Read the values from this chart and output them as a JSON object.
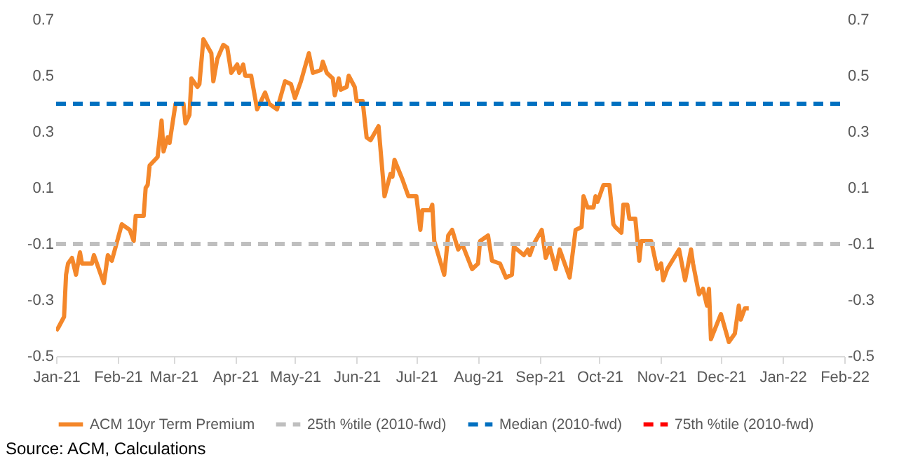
{
  "chart_data": {
    "type": "line",
    "legend": "bottom",
    "xlim": [
      "2021-01-01",
      "2022-02-01"
    ],
    "xticks": [
      {
        "value": "2021-01-01",
        "label": "Jan-21"
      },
      {
        "value": "2021-02-01",
        "label": "Feb-21"
      },
      {
        "value": "2021-03-01",
        "label": "Mar-21"
      },
      {
        "value": "2021-04-01",
        "label": "Apr-21"
      },
      {
        "value": "2021-05-01",
        "label": "May-21"
      },
      {
        "value": "2021-06-01",
        "label": "Jun-21"
      },
      {
        "value": "2021-07-01",
        "label": "Jul-21"
      },
      {
        "value": "2021-08-01",
        "label": "Aug-21"
      },
      {
        "value": "2021-09-01",
        "label": "Sep-21"
      },
      {
        "value": "2021-10-01",
        "label": "Oct-21"
      },
      {
        "value": "2021-11-01",
        "label": "Nov-21"
      },
      {
        "value": "2021-12-01",
        "label": "Dec-21"
      },
      {
        "value": "2022-01-01",
        "label": "Jan-22"
      },
      {
        "value": "2022-02-01",
        "label": "Feb-22"
      }
    ],
    "ylim": [
      -0.5,
      0.7
    ],
    "yticks": [
      -0.5,
      -0.3,
      -0.1,
      0.1,
      0.3,
      0.5,
      0.7
    ],
    "y2lim": [
      -0.5,
      0.7
    ],
    "y2ticks": [
      -0.5,
      -0.3,
      -0.1,
      0.1,
      0.3,
      0.5,
      0.7
    ],
    "annotations": [
      "Source: ACM, Calculations"
    ],
    "series": [
      {
        "name": "ACM 10yr Term Premium",
        "color": "#f4872a",
        "line_style": "solid",
        "x": [
          "2021-01-01",
          "2021-01-02",
          "2021-01-05",
          "2021-01-06",
          "2021-01-07",
          "2021-01-09",
          "2021-01-11",
          "2021-01-13",
          "2021-01-14",
          "2021-01-19",
          "2021-01-20",
          "2021-01-25",
          "2021-01-27",
          "2021-01-29",
          "2021-02-03",
          "2021-02-07",
          "2021-02-09",
          "2021-02-10",
          "2021-02-14",
          "2021-02-15",
          "2021-02-16",
          "2021-02-17",
          "2021-02-21",
          "2021-02-23",
          "2021-02-24",
          "2021-02-26",
          "2021-02-27",
          "2021-03-02",
          "2021-03-06",
          "2021-03-07",
          "2021-03-09",
          "2021-03-10",
          "2021-03-13",
          "2021-03-14",
          "2021-03-16",
          "2021-03-20",
          "2021-03-21",
          "2021-03-23",
          "2021-03-26",
          "2021-03-28",
          "2021-03-30",
          "2021-04-02",
          "2021-04-03",
          "2021-04-05",
          "2021-04-06",
          "2021-04-09",
          "2021-04-12",
          "2021-04-16",
          "2021-04-18",
          "2021-04-22",
          "2021-04-26",
          "2021-04-29",
          "2021-05-01",
          "2021-05-04",
          "2021-05-08",
          "2021-05-10",
          "2021-05-14",
          "2021-05-15",
          "2021-05-17",
          "2021-05-20",
          "2021-05-21",
          "2021-05-23",
          "2021-05-24",
          "2021-05-27",
          "2021-05-28",
          "2021-05-31",
          "2021-06-01",
          "2021-06-04",
          "2021-06-06",
          "2021-06-08",
          "2021-06-12",
          "2021-06-15",
          "2021-06-18",
          "2021-06-19",
          "2021-06-20",
          "2021-06-24",
          "2021-06-27",
          "2021-07-01",
          "2021-07-03",
          "2021-07-04",
          "2021-07-08",
          "2021-07-09",
          "2021-07-10",
          "2021-07-15",
          "2021-07-17",
          "2021-07-19",
          "2021-07-22",
          "2021-07-24",
          "2021-07-29",
          "2021-08-01",
          "2021-08-02",
          "2021-08-06",
          "2021-08-08",
          "2021-08-12",
          "2021-08-15",
          "2021-08-18",
          "2021-08-19",
          "2021-08-24",
          "2021-08-26",
          "2021-08-27",
          "2021-08-29",
          "2021-09-02",
          "2021-09-04",
          "2021-09-06",
          "2021-09-09",
          "2021-09-11",
          "2021-09-16",
          "2021-09-19",
          "2021-09-22",
          "2021-09-23",
          "2021-09-25",
          "2021-09-28",
          "2021-09-29",
          "2021-09-30",
          "2021-10-03",
          "2021-10-06",
          "2021-10-08",
          "2021-10-09",
          "2021-10-12",
          "2021-10-13",
          "2021-10-15",
          "2021-10-16",
          "2021-10-19",
          "2021-10-21",
          "2021-10-22",
          "2021-10-27",
          "2021-10-30",
          "2021-11-01",
          "2021-11-02",
          "2021-11-04",
          "2021-11-10",
          "2021-11-13",
          "2021-11-16",
          "2021-11-17",
          "2021-11-20",
          "2021-11-22",
          "2021-11-24",
          "2021-11-25",
          "2021-11-26",
          "2021-12-01",
          "2021-12-05",
          "2021-12-08",
          "2021-12-10",
          "2021-12-11",
          "2021-12-13",
          "2021-12-15"
        ],
        "values": [
          -0.41,
          -0.4,
          -0.36,
          -0.21,
          -0.17,
          -0.15,
          -0.21,
          -0.13,
          -0.17,
          -0.17,
          -0.14,
          -0.24,
          -0.14,
          -0.16,
          -0.03,
          -0.05,
          -0.09,
          0.0,
          0.0,
          0.1,
          0.11,
          0.18,
          0.21,
          0.34,
          0.23,
          0.28,
          0.26,
          0.4,
          0.4,
          0.33,
          0.36,
          0.49,
          0.46,
          0.47,
          0.63,
          0.58,
          0.48,
          0.56,
          0.61,
          0.6,
          0.51,
          0.54,
          0.51,
          0.54,
          0.5,
          0.5,
          0.38,
          0.44,
          0.4,
          0.38,
          0.48,
          0.47,
          0.42,
          0.48,
          0.58,
          0.51,
          0.52,
          0.55,
          0.51,
          0.49,
          0.43,
          0.49,
          0.45,
          0.46,
          0.5,
          0.46,
          0.41,
          0.41,
          0.28,
          0.27,
          0.32,
          0.07,
          0.15,
          0.14,
          0.2,
          0.13,
          0.07,
          0.07,
          -0.05,
          0.02,
          0.02,
          0.04,
          -0.09,
          -0.21,
          -0.07,
          -0.05,
          -0.12,
          -0.1,
          -0.19,
          -0.17,
          -0.09,
          -0.07,
          -0.16,
          -0.17,
          -0.22,
          -0.21,
          -0.11,
          -0.14,
          -0.12,
          -0.14,
          -0.1,
          -0.05,
          -0.15,
          -0.11,
          -0.19,
          -0.12,
          -0.22,
          -0.05,
          -0.04,
          0.07,
          0.03,
          0.03,
          0.07,
          0.05,
          0.11,
          0.11,
          -0.03,
          -0.04,
          -0.06,
          0.04,
          0.04,
          -0.01,
          -0.01,
          -0.16,
          -0.09,
          -0.09,
          -0.19,
          -0.17,
          -0.23,
          -0.19,
          -0.12,
          -0.23,
          -0.12,
          -0.17,
          -0.28,
          -0.26,
          -0.32,
          -0.26,
          -0.44,
          -0.35,
          -0.45,
          -0.42,
          -0.32,
          -0.37,
          -0.33,
          -0.33
        ]
      },
      {
        "name": "25th %tile (2010-fwd)",
        "color": "#bfbfbf",
        "line_style": "dashed",
        "x": [
          "2021-01-01",
          "2022-02-01"
        ],
        "values": [
          -0.1,
          -0.1
        ]
      },
      {
        "name": "Median (2010-fwd)",
        "color": "#0070c0",
        "line_style": "dashed",
        "x": [
          "2021-01-01",
          "2022-02-01"
        ],
        "values": [
          0.4,
          0.4
        ]
      },
      {
        "name": "75th %tile (2010-fwd)",
        "color": "#ff0000",
        "line_style": "dashed"
      }
    ]
  }
}
